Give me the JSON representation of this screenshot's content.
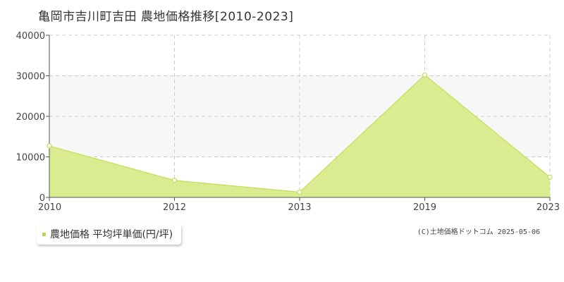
{
  "colors": {
    "area_fill": "#d9ec8f",
    "line": "#c0e05a",
    "band": "#f8f7f8",
    "grid": "#cccccc",
    "axis": "#555555",
    "legend_swatch": "#b5d84a"
  },
  "chart_data": {
    "type": "area",
    "title": "亀岡市吉川町吉田 農地価格推移[2010-2023]",
    "x": [
      "2010",
      "2012",
      "2013",
      "2019",
      "2023"
    ],
    "y_ticks": [
      "0",
      "10000",
      "20000",
      "30000",
      "40000"
    ],
    "ylim": [
      0,
      40000
    ],
    "grid": true,
    "legend_position": "bottom-left",
    "series": [
      {
        "name": "農地価格 平均坪単価(円/坪)",
        "values": [
          12700,
          4200,
          1300,
          30200,
          5000
        ]
      }
    ]
  },
  "copyright": "(C)土地価格ドットコム 2025-05-06"
}
